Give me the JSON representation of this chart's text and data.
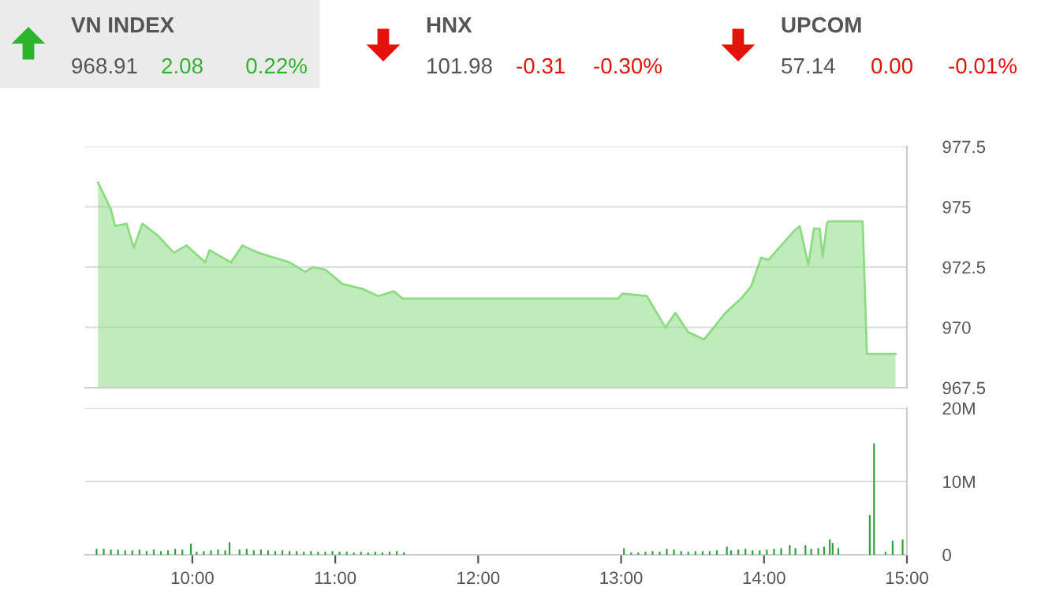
{
  "chart_data": [
    {
      "type": "other",
      "annotations": [
        "VN INDEX",
        "968.91",
        "2.08",
        "0.22%",
        "HNX",
        "101.98",
        "-0.31",
        "-0.30%",
        "UPCOM",
        "57.14",
        "0.00",
        "-0.01%"
      ],
      "colors": [
        "#2cb52c",
        "#e3120b",
        "#e3120b"
      ]
    },
    {
      "type": "area",
      "x": [
        9.34,
        9.39,
        9.43,
        9.46,
        9.54,
        9.59,
        9.65,
        9.76,
        9.87,
        9.96,
        10.09,
        10.12,
        10.27,
        10.35,
        10.46,
        10.57,
        10.68,
        10.79,
        10.84,
        10.93,
        11.05,
        11.19,
        11.3,
        11.41,
        11.47,
        12.98,
        13.01,
        13.18,
        13.31,
        13.38,
        13.47,
        13.58,
        13.73,
        13.84,
        13.91,
        13.98,
        14.03,
        14.21,
        14.25,
        14.31,
        14.35,
        14.39,
        14.41,
        14.44,
        14.45,
        14.69,
        14.72,
        14.92
      ],
      "series": [
        {
          "color": "#8ddc84",
          "values": [
            976.0,
            975.4,
            974.9,
            974.2,
            974.3,
            973.3,
            974.3,
            973.8,
            973.1,
            973.4,
            972.7,
            973.2,
            972.7,
            973.4,
            973.1,
            972.9,
            972.7,
            972.3,
            972.5,
            972.4,
            971.8,
            971.6,
            971.3,
            971.5,
            971.2,
            971.2,
            971.4,
            971.3,
            970.0,
            970.6,
            969.8,
            969.5,
            970.6,
            971.2,
            971.7,
            972.9,
            972.8,
            974.0,
            974.2,
            972.6,
            974.1,
            974.1,
            972.9,
            974.3,
            974.4,
            974.4,
            968.9,
            968.9
          ]
        }
      ],
      "xlim": [
        9.25,
        15.0
      ],
      "ylim": [
        967.5,
        977.5
      ],
      "yticks": [
        967.5,
        970,
        972.5,
        975,
        977.5
      ],
      "grid": "y",
      "tick_labels": "y"
    },
    {
      "type": "bar",
      "x": [
        9.33,
        9.38,
        9.43,
        9.48,
        9.53,
        9.58,
        9.63,
        9.68,
        9.73,
        9.78,
        9.83,
        9.88,
        9.93,
        9.99,
        10.03,
        10.08,
        10.13,
        10.18,
        10.23,
        10.26,
        10.33,
        10.38,
        10.43,
        10.48,
        10.53,
        10.58,
        10.63,
        10.68,
        10.73,
        10.78,
        10.83,
        10.88,
        10.93,
        10.98,
        11.03,
        11.08,
        11.13,
        11.18,
        11.23,
        11.28,
        11.33,
        11.38,
        11.43,
        11.48,
        13.02,
        13.07,
        13.12,
        13.17,
        13.22,
        13.27,
        13.32,
        13.37,
        13.42,
        13.47,
        13.52,
        13.57,
        13.62,
        13.67,
        13.74,
        13.77,
        13.82,
        13.87,
        13.92,
        13.97,
        14.02,
        14.07,
        14.12,
        14.18,
        14.22,
        14.29,
        14.33,
        14.38,
        14.42,
        14.46,
        14.48,
        14.52,
        14.74,
        14.77,
        14.85,
        14.9,
        14.97
      ],
      "series": [
        {
          "color": "#2e9e3e",
          "values": [
            0.8,
            0.8,
            0.7,
            0.7,
            0.6,
            0.6,
            0.7,
            0.5,
            0.7,
            0.5,
            0.6,
            0.8,
            0.7,
            1.5,
            0.4,
            0.5,
            0.6,
            0.7,
            0.6,
            1.7,
            0.7,
            0.8,
            0.6,
            0.7,
            0.6,
            0.5,
            0.6,
            0.5,
            0.5,
            0.4,
            0.5,
            0.4,
            0.4,
            0.5,
            0.4,
            0.4,
            0.3,
            0.4,
            0.3,
            0.4,
            0.3,
            0.4,
            0.5,
            0.3,
            0.9,
            0.3,
            0.3,
            0.4,
            0.5,
            0.4,
            0.8,
            0.7,
            0.5,
            0.4,
            0.5,
            0.5,
            0.5,
            0.6,
            1.1,
            0.6,
            0.7,
            0.8,
            0.6,
            0.6,
            0.7,
            0.8,
            0.9,
            1.3,
            0.9,
            1.3,
            0.8,
            0.9,
            1.1,
            2.1,
            1.6,
            0.9,
            5.4,
            15.2,
            0.4,
            1.9,
            2.1
          ]
        }
      ],
      "xlim": [
        9.25,
        15.0
      ],
      "xticks": [
        {
          "value": 10,
          "label": "10:00"
        },
        {
          "value": 11,
          "label": "11:00"
        },
        {
          "value": 12,
          "label": "12:00"
        },
        {
          "value": 13,
          "label": "13:00"
        },
        {
          "value": 14,
          "label": "14:00"
        },
        {
          "value": 15,
          "label": "15:00"
        }
      ],
      "ylim": [
        0,
        20
      ],
      "yticks": [
        0,
        {
          "value": 10,
          "label": "10M"
        },
        {
          "value": 20,
          "label": "20M"
        }
      ],
      "grid": "y"
    }
  ]
}
